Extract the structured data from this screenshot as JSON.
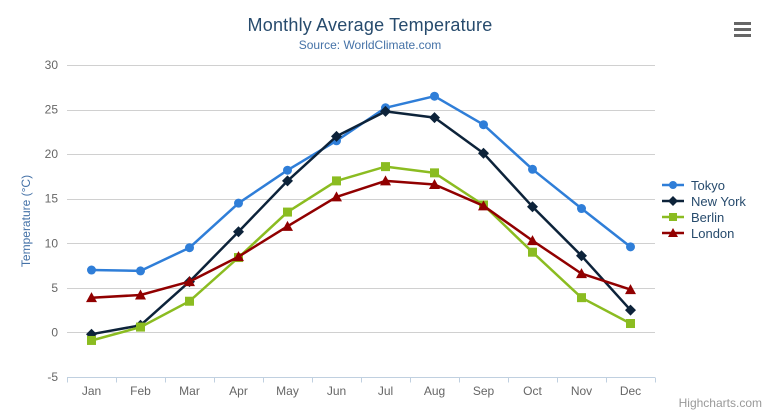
{
  "chart_data": {
    "type": "line",
    "title": "Monthly Average Temperature",
    "subtitle": "Source: WorldClimate.com",
    "xlabel": "",
    "ylabel": "Temperature (°C)",
    "categories": [
      "Jan",
      "Feb",
      "Mar",
      "Apr",
      "May",
      "Jun",
      "Jul",
      "Aug",
      "Sep",
      "Oct",
      "Nov",
      "Dec"
    ],
    "series": [
      {
        "name": "Tokyo",
        "color": "#2f7ed8",
        "marker": "circle",
        "values": [
          7.0,
          6.9,
          9.5,
          14.5,
          18.2,
          21.5,
          25.2,
          26.5,
          23.3,
          18.3,
          13.9,
          9.6
        ]
      },
      {
        "name": "New York",
        "color": "#0d233a",
        "marker": "diamond",
        "values": [
          -0.2,
          0.8,
          5.7,
          11.3,
          17.0,
          22.0,
          24.8,
          24.1,
          20.1,
          14.1,
          8.6,
          2.5
        ]
      },
      {
        "name": "Berlin",
        "color": "#8bbc21",
        "marker": "square",
        "values": [
          -0.9,
          0.6,
          3.5,
          8.4,
          13.5,
          17.0,
          18.6,
          17.9,
          14.3,
          9.0,
          3.9,
          1.0
        ]
      },
      {
        "name": "London",
        "color": "#910000",
        "marker": "triangle",
        "values": [
          3.9,
          4.2,
          5.7,
          8.5,
          11.9,
          15.2,
          17.0,
          16.6,
          14.2,
          10.3,
          6.6,
          4.8
        ]
      }
    ],
    "ylim": [
      -5,
      30
    ],
    "ytick_step": 5,
    "grid": true,
    "legend_position": "right",
    "style": {
      "grid_color": "#d0d0d0",
      "axis_line_color": "#c0d0e0",
      "axis_label_color": "#666666",
      "title_color": "#274b6d",
      "subtitle_color": "#4572a7",
      "axis_title_color": "#4572a7",
      "legend_text_color": "#274b6d",
      "line_width": 2.5
    }
  },
  "credits": {
    "label": "Highcharts.com"
  }
}
